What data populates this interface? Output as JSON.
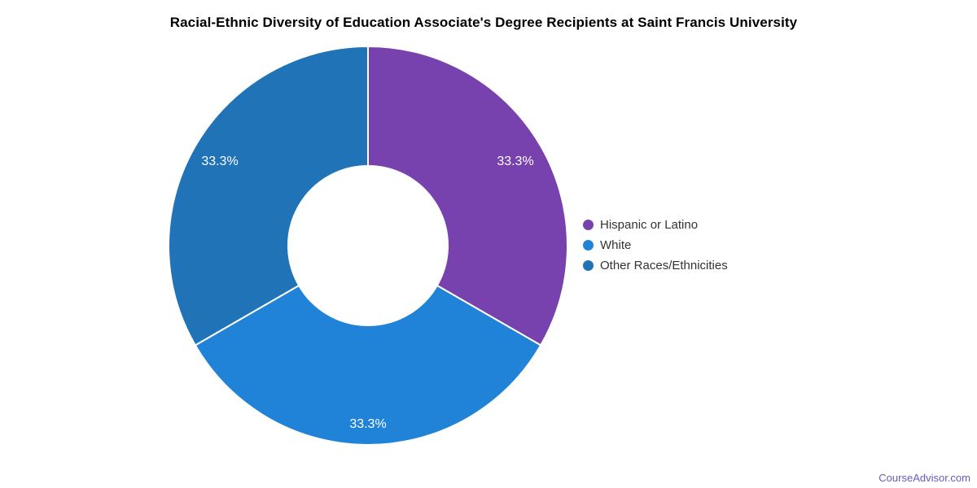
{
  "chart_data": {
    "type": "pie",
    "subtype": "donut",
    "title": "Racial-Ethnic Diversity of Education Associate's Degree Recipients at Saint Francis University",
    "labels": [
      "Hispanic or Latino",
      "White",
      "Other Races/Ethnicities"
    ],
    "values": [
      33.3,
      33.3,
      33.3
    ],
    "display_values": [
      "33.3%",
      "33.3%",
      "33.3%"
    ],
    "colors": [
      "#7842AE",
      "#2183D8",
      "#2173B8"
    ],
    "slice_label_color": "#FFFFFF",
    "slice_border_color": "#FFFFFF",
    "legend_text_color": "#333333",
    "start_angle_deg": 0,
    "direction": "clockwise",
    "inner_radius_ratio": 0.4,
    "legend_position": "right"
  },
  "footer": {
    "watermark": "CourseAdvisor.com",
    "watermark_color": "#6A5BBF"
  }
}
